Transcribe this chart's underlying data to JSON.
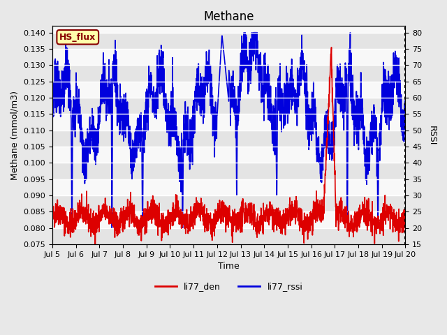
{
  "title": "Methane",
  "ylabel_left": "Methane (mmol/m3)",
  "ylabel_right": "RSSI",
  "xlabel": "Time",
  "ylim_left": [
    0.075,
    0.142
  ],
  "ylim_right": [
    15,
    82
  ],
  "yticks_left": [
    0.075,
    0.08,
    0.085,
    0.09,
    0.095,
    0.1,
    0.105,
    0.11,
    0.115,
    0.12,
    0.125,
    0.13,
    0.135,
    0.14
  ],
  "yticks_right": [
    15,
    20,
    25,
    30,
    35,
    40,
    45,
    50,
    55,
    60,
    65,
    70,
    75,
    80
  ],
  "xtick_labels": [
    "Jul 5",
    "Jul 6",
    "Jul 7",
    "Jul 8",
    "Jul 9",
    "Jul 10",
    "Jul 11",
    "Jul 12",
    "Jul 13",
    "Jul 14",
    "Jul 15",
    "Jul 16",
    "Jul 17",
    "Jul 18",
    "Jul 19",
    "Jul 20"
  ],
  "xtick_positions": [
    0,
    1,
    2,
    3,
    4,
    5,
    6,
    7,
    8,
    9,
    10,
    11,
    12,
    13,
    14,
    15
  ],
  "color_red": "#dd0000",
  "color_blue": "#0000dd",
  "legend_label_red": "li77_den",
  "legend_label_blue": "li77_rssi",
  "watermark_text": "HS_flux",
  "watermark_bg": "#ffffaa",
  "watermark_fg": "#880000",
  "plot_bg": "#f8f8f8",
  "linewidth": 1.2,
  "title_fontsize": 12,
  "axis_fontsize": 9,
  "tick_fontsize": 8
}
